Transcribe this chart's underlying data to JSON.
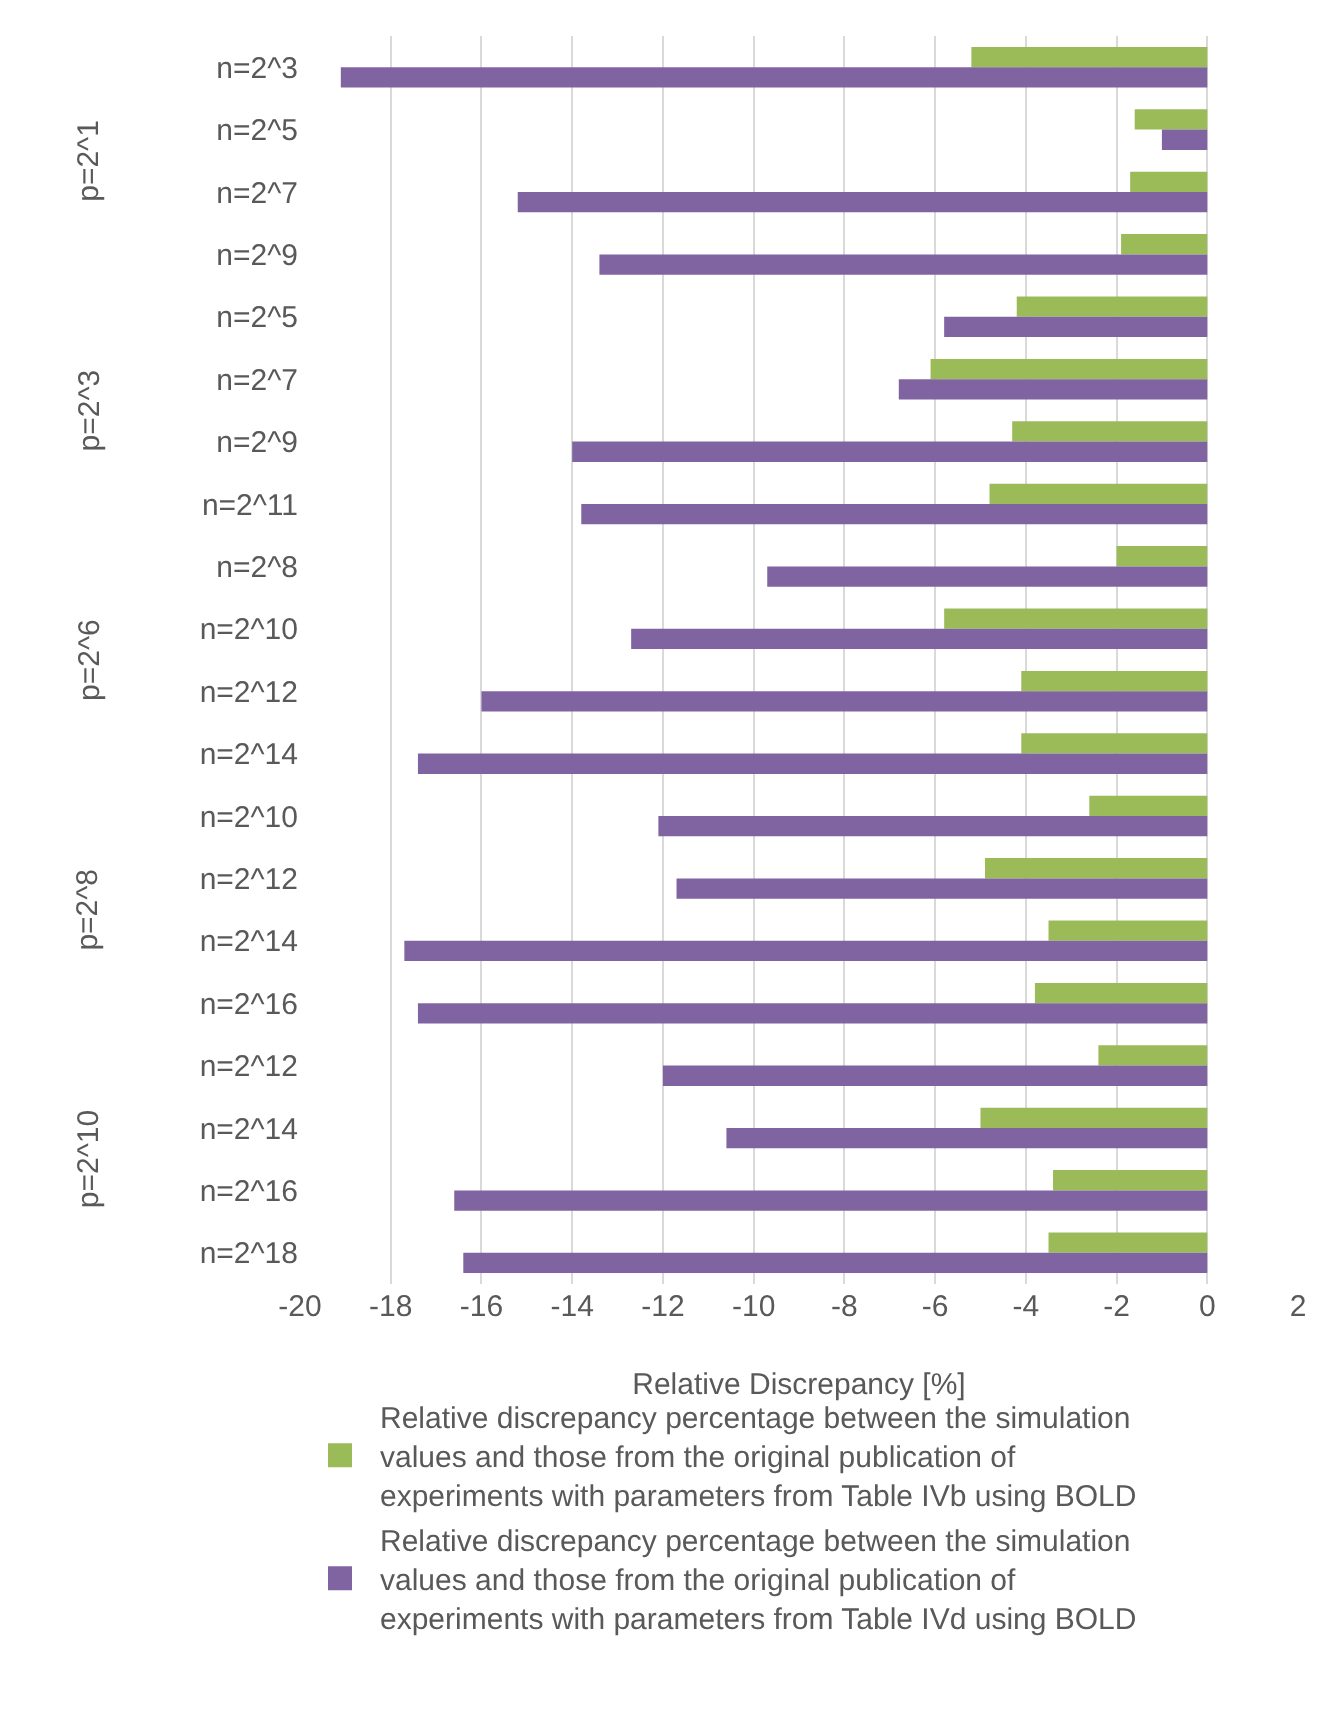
{
  "chart_data": {
    "type": "bar",
    "orientation": "horizontal",
    "xlabel": "Relative Discrepancy [%]",
    "categories": [
      "n=2^3",
      "n=2^5",
      "n=2^7",
      "n=2^9",
      "n=2^5",
      "n=2^7",
      "n=2^9",
      "n=2^11",
      "n=2^8",
      "n=2^10",
      "n=2^12",
      "n=2^14",
      "n=2^10",
      "n=2^12",
      "n=2^14",
      "n=2^16",
      "n=2^12",
      "n=2^14",
      "n=2^16",
      "n=2^18"
    ],
    "annotations": [
      "p=2^1",
      "p=2^3",
      "p=2^6",
      "p=2^8",
      "p=2^10"
    ],
    "series": [
      {
        "name": "Relative discrepancy percentage between the simulation values and those from the original publication of experiments with parameters from Table IVb using BOLD",
        "color": "#9bbb59",
        "values": [
          -5.2,
          -1.6,
          -1.7,
          -1.9,
          -4.2,
          -6.1,
          -4.3,
          -4.8,
          -2.0,
          -5.8,
          -4.1,
          -4.1,
          -2.6,
          -4.9,
          -3.5,
          -3.8,
          -2.4,
          -5.0,
          -3.4,
          -3.5
        ]
      },
      {
        "name": "Relative discrepancy percentage between the simulation values and those from the original publication of experiments with parameters from Table IVd using BOLD",
        "color": "#8064a2",
        "values": [
          -19.1,
          -1.0,
          -15.2,
          -13.4,
          -5.8,
          -6.8,
          -14.0,
          -13.8,
          -9.7,
          -12.7,
          -16.0,
          -17.4,
          -12.1,
          -11.7,
          -17.7,
          -17.4,
          -12.0,
          -10.6,
          -16.6,
          -16.4
        ]
      }
    ],
    "xlim": [
      -20,
      2
    ],
    "xticks": [
      -20,
      -18,
      -16,
      -14,
      -12,
      -10,
      -8,
      -6,
      -4,
      -2,
      0,
      2
    ],
    "grid": "x",
    "legend": "bottom"
  }
}
